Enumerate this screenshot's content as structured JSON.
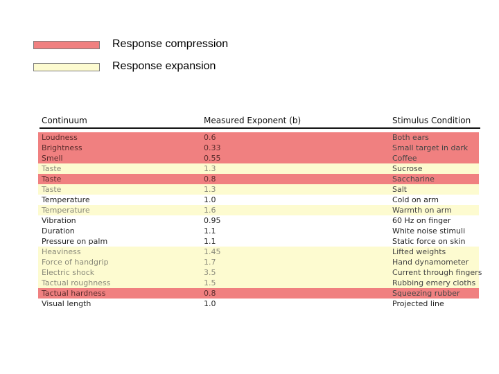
{
  "legend": {
    "compression": {
      "label": "Response compression",
      "color": "#f08080"
    },
    "expansion": {
      "label": "Response expansion",
      "color": "#fdfbd0"
    }
  },
  "table": {
    "headers": {
      "continuum": "Continuum",
      "exponent": "Measured Exponent (b)",
      "condition": "Stimulus Condition"
    },
    "rows": [
      {
        "continuum": "Loudness",
        "exponent": "0.6",
        "condition": "Both ears",
        "type": "compression"
      },
      {
        "continuum": "Brightness",
        "exponent": "0.33",
        "condition": "Small target in dark",
        "type": "compression"
      },
      {
        "continuum": "Smell",
        "exponent": "0.55",
        "condition": "Coffee",
        "type": "compression"
      },
      {
        "continuum": "Taste",
        "exponent": "1.3",
        "condition": "Sucrose",
        "type": "expansion"
      },
      {
        "continuum": "Taste",
        "exponent": "0.8",
        "condition": "Saccharine",
        "type": "compression"
      },
      {
        "continuum": "Taste",
        "exponent": "1.3",
        "condition": "Salt",
        "type": "expansion"
      },
      {
        "continuum": "Temperature",
        "exponent": "1.0",
        "condition": "Cold on arm",
        "type": "normal"
      },
      {
        "continuum": "Temperature",
        "exponent": "1.6",
        "condition": "Warmth on arm",
        "type": "expansion"
      },
      {
        "continuum": "Vibration",
        "exponent": "0.95",
        "condition": "60 Hz on finger",
        "type": "normal"
      },
      {
        "continuum": "Duration",
        "exponent": "1.1",
        "condition": "White noise stimuli",
        "type": "normal"
      },
      {
        "continuum": "Pressure on palm",
        "exponent": "1.1",
        "condition": "Static force on skin",
        "type": "normal"
      },
      {
        "continuum": "Heaviness",
        "exponent": "1.45",
        "condition": "Lifted weights",
        "type": "expansion"
      },
      {
        "continuum": "Force of handgrip",
        "exponent": "1.7",
        "condition": "Hand dynamometer",
        "type": "expansion"
      },
      {
        "continuum": "Electric shock",
        "exponent": "3.5",
        "condition": "Current through fingers",
        "type": "expansion"
      },
      {
        "continuum": "Tactual roughness",
        "exponent": "1.5",
        "condition": "Rubbing emery cloths",
        "type": "expansion"
      },
      {
        "continuum": "Tactual hardness",
        "exponent": "0.8",
        "condition": "Squeezing rubber",
        "type": "compression"
      },
      {
        "continuum": "Visual length",
        "exponent": "1.0",
        "condition": "Projected line",
        "type": "normal"
      }
    ]
  }
}
